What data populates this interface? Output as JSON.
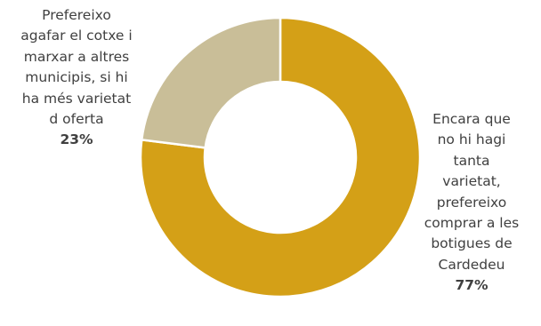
{
  "chart_data": {
    "type": "donut",
    "title": "",
    "slices": [
      {
        "label_lines": [
          "Encara que",
          "no hi hagi",
          "tanta",
          "varietat,",
          "prefereixo",
          "comprar a les",
          "botigues de",
          "Cardedeu"
        ],
        "value": 77,
        "value_label": "77%",
        "color": "#D4A017"
      },
      {
        "label_lines": [
          "Prefereixo",
          "agafar el cotxe i",
          "marxar a altres",
          "municipis, si hi",
          "ha més varietat",
          "d oferta"
        ],
        "value": 23,
        "value_label": "23%",
        "color": "#C9BE98"
      }
    ],
    "start_angle_deg": 0,
    "direction": "clockwise",
    "legend": "none"
  }
}
